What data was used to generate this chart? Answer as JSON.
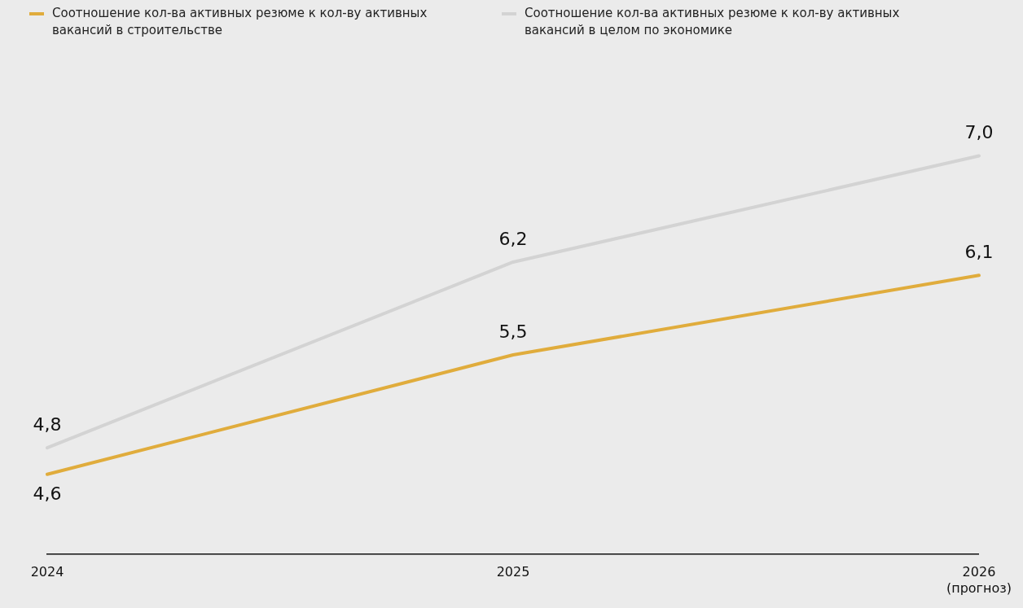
{
  "chart_data": {
    "type": "line",
    "categories": [
      "2024",
      "2025",
      "2026\n(прогноз)"
    ],
    "series": [
      {
        "name": "Соотношение кол-ва активных резюме к кол-ву активных вакансий в строительстве",
        "color": "#e0ac3c",
        "values": [
          4.6,
          5.5,
          6.1
        ],
        "value_labels": [
          "4,6",
          "5,5",
          "6,1"
        ]
      },
      {
        "name": "Соотношение кол-ва активных резюме к кол-ву активных вакансий в целом по экономике",
        "color": "#d3d3d3",
        "values": [
          4.8,
          6.2,
          7.0
        ],
        "value_labels": [
          "4,8",
          "6,2",
          "7,0"
        ]
      }
    ],
    "legend": "top left",
    "tick_labels": "x",
    "grid": false,
    "marker": "none",
    "line_style": "solid"
  }
}
